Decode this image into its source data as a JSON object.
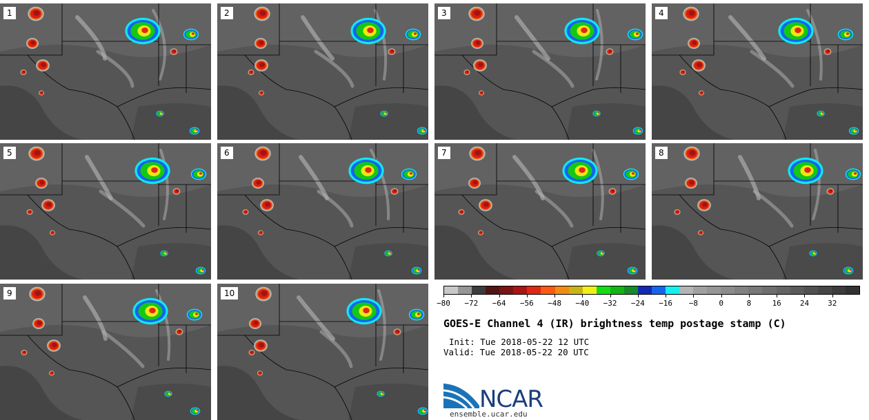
{
  "panels": [
    {
      "label": "1"
    },
    {
      "label": "2"
    },
    {
      "label": "3"
    },
    {
      "label": "4"
    },
    {
      "label": "5"
    },
    {
      "label": "6"
    },
    {
      "label": "7"
    },
    {
      "label": "8"
    },
    {
      "label": "9"
    },
    {
      "label": "10"
    }
  ],
  "colorbar": {
    "colors": [
      "#c8c8c8",
      "#969696",
      "#3c3c3c",
      "#501414",
      "#781414",
      "#aa1414",
      "#dc2814",
      "#fa5a14",
      "#f08c14",
      "#c8b414",
      "#f0f014",
      "#14dc14",
      "#14b414",
      "#148c28",
      "#1428b4",
      "#1464f0",
      "#14f0f0",
      "#b4b4b4",
      "#a0a0a0",
      "#969696",
      "#8c8c8c",
      "#828282",
      "#787878",
      "#6e6e6e",
      "#646464",
      "#5a5a5a",
      "#505050",
      "#464646",
      "#3c3c3c",
      "#323232"
    ],
    "tick_labels": [
      "−80",
      "−72",
      "−64",
      "−56",
      "−48",
      "−40",
      "−32",
      "−24",
      "−16",
      "−8",
      "0",
      "8",
      "16",
      "24",
      "32"
    ]
  },
  "title": "GOES-E Channel 4 (IR) brightness temp postage stamp (C)",
  "init_text": "Init: Tue 2018-05-22 12 UTC",
  "valid_text": "Valid: Tue 2018-05-22 20 UTC",
  "logo": {
    "text": "NCAR",
    "url": "ensemble.ucar.edu",
    "color": "#1a3f7a",
    "accent": "#1a73b8"
  }
}
